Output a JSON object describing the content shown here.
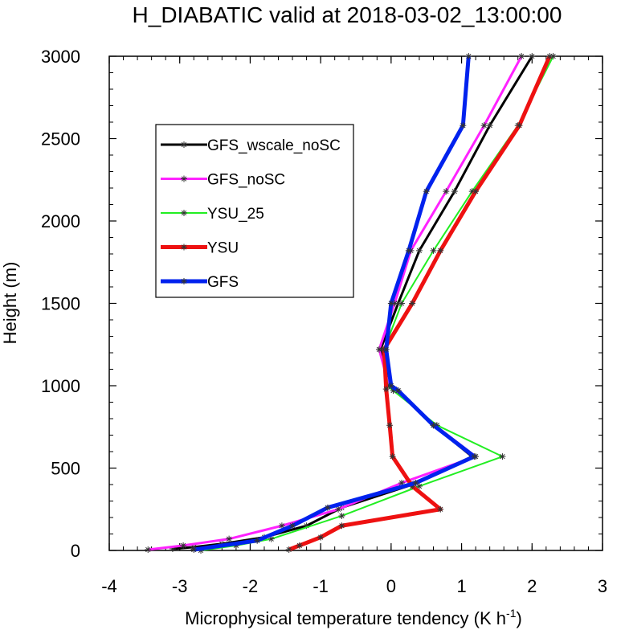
{
  "chart_data": {
    "type": "line",
    "title": "H_DIABATIC valid at 2018-03-02_13:00:00",
    "xlabel_main": "Microphysical temperature tendency (K h",
    "xlabel_sup": "-1",
    "xlabel_close": ")",
    "ylabel": "Height (m)",
    "xlim": [
      -4,
      3
    ],
    "ylim": [
      0,
      3000
    ],
    "xticks": [
      -4,
      -3,
      -2,
      -1,
      0,
      1,
      2,
      3
    ],
    "yticks": [
      0,
      500,
      1000,
      1500,
      2000,
      2500,
      3000
    ],
    "xtick_labels": [
      "-4",
      "-3",
      "-2",
      "-1",
      "0",
      "1",
      "2",
      "3"
    ],
    "ytick_labels": [
      "0",
      "500",
      "1000",
      "1500",
      "2000",
      "2500",
      "3000"
    ],
    "legend_position": "upper-left",
    "series": [
      {
        "name": "GFS_wscale_noSC",
        "color": "#000000",
        "width": 3,
        "x": [
          -3.1,
          -2.8,
          -2.4,
          -1.8,
          -1.2,
          -0.7,
          0.3,
          1.15,
          0.6,
          0.1,
          -0.02,
          -0.15,
          0.1,
          0.4,
          0.9,
          1.4,
          2.0
        ],
        "y": [
          10,
          20,
          40,
          80,
          150,
          260,
          400,
          570,
          760,
          970,
          1000,
          1220,
          1500,
          1820,
          2180,
          2580,
          3000
        ]
      },
      {
        "name": "GFS_noSC",
        "color": "#ff22ff",
        "width": 3,
        "x": [
          -3.45,
          -2.95,
          -2.3,
          -1.55,
          -0.75,
          0.15,
          1.2,
          0.62,
          0.05,
          -0.03,
          -0.17,
          0.05,
          0.28,
          0.78,
          1.32,
          1.85
        ],
        "y": [
          5,
          30,
          70,
          150,
          250,
          410,
          570,
          760,
          980,
          1000,
          1220,
          1500,
          1820,
          2180,
          2580,
          3000
        ]
      },
      {
        "name": "YSU_25",
        "color": "#22ee22",
        "width": 2,
        "x": [
          -2.7,
          -2.2,
          -1.7,
          -0.7,
          0.4,
          1.58,
          0.65,
          0.03,
          -0.05,
          -0.1,
          0.15,
          0.6,
          1.15,
          1.8,
          2.3
        ],
        "y": [
          0,
          30,
          70,
          210,
          390,
          570,
          760,
          970,
          1000,
          1220,
          1500,
          1820,
          2180,
          2580,
          3000
        ]
      },
      {
        "name": "YSU",
        "color": "#ee1111",
        "width": 5,
        "x": [
          -1.45,
          -1.3,
          -1.0,
          -0.7,
          0.7,
          0.3,
          0.02,
          -0.02,
          -0.07,
          -0.1,
          0.3,
          0.7,
          1.2,
          1.82,
          2.25
        ],
        "y": [
          5,
          30,
          80,
          150,
          250,
          390,
          570,
          760,
          980,
          1220,
          1500,
          1820,
          2180,
          2580,
          3000
        ]
      },
      {
        "name": "GFS",
        "color": "#0022ee",
        "width": 5,
        "x": [
          -2.8,
          -1.9,
          -1.4,
          -0.9,
          0.35,
          1.18,
          0.6,
          0.1,
          0.0,
          -0.07,
          0.0,
          0.25,
          0.5,
          1.02,
          1.1
        ],
        "y": [
          5,
          60,
          150,
          260,
          410,
          570,
          760,
          970,
          1000,
          1220,
          1500,
          1820,
          2180,
          2580,
          3000
        ]
      }
    ]
  }
}
